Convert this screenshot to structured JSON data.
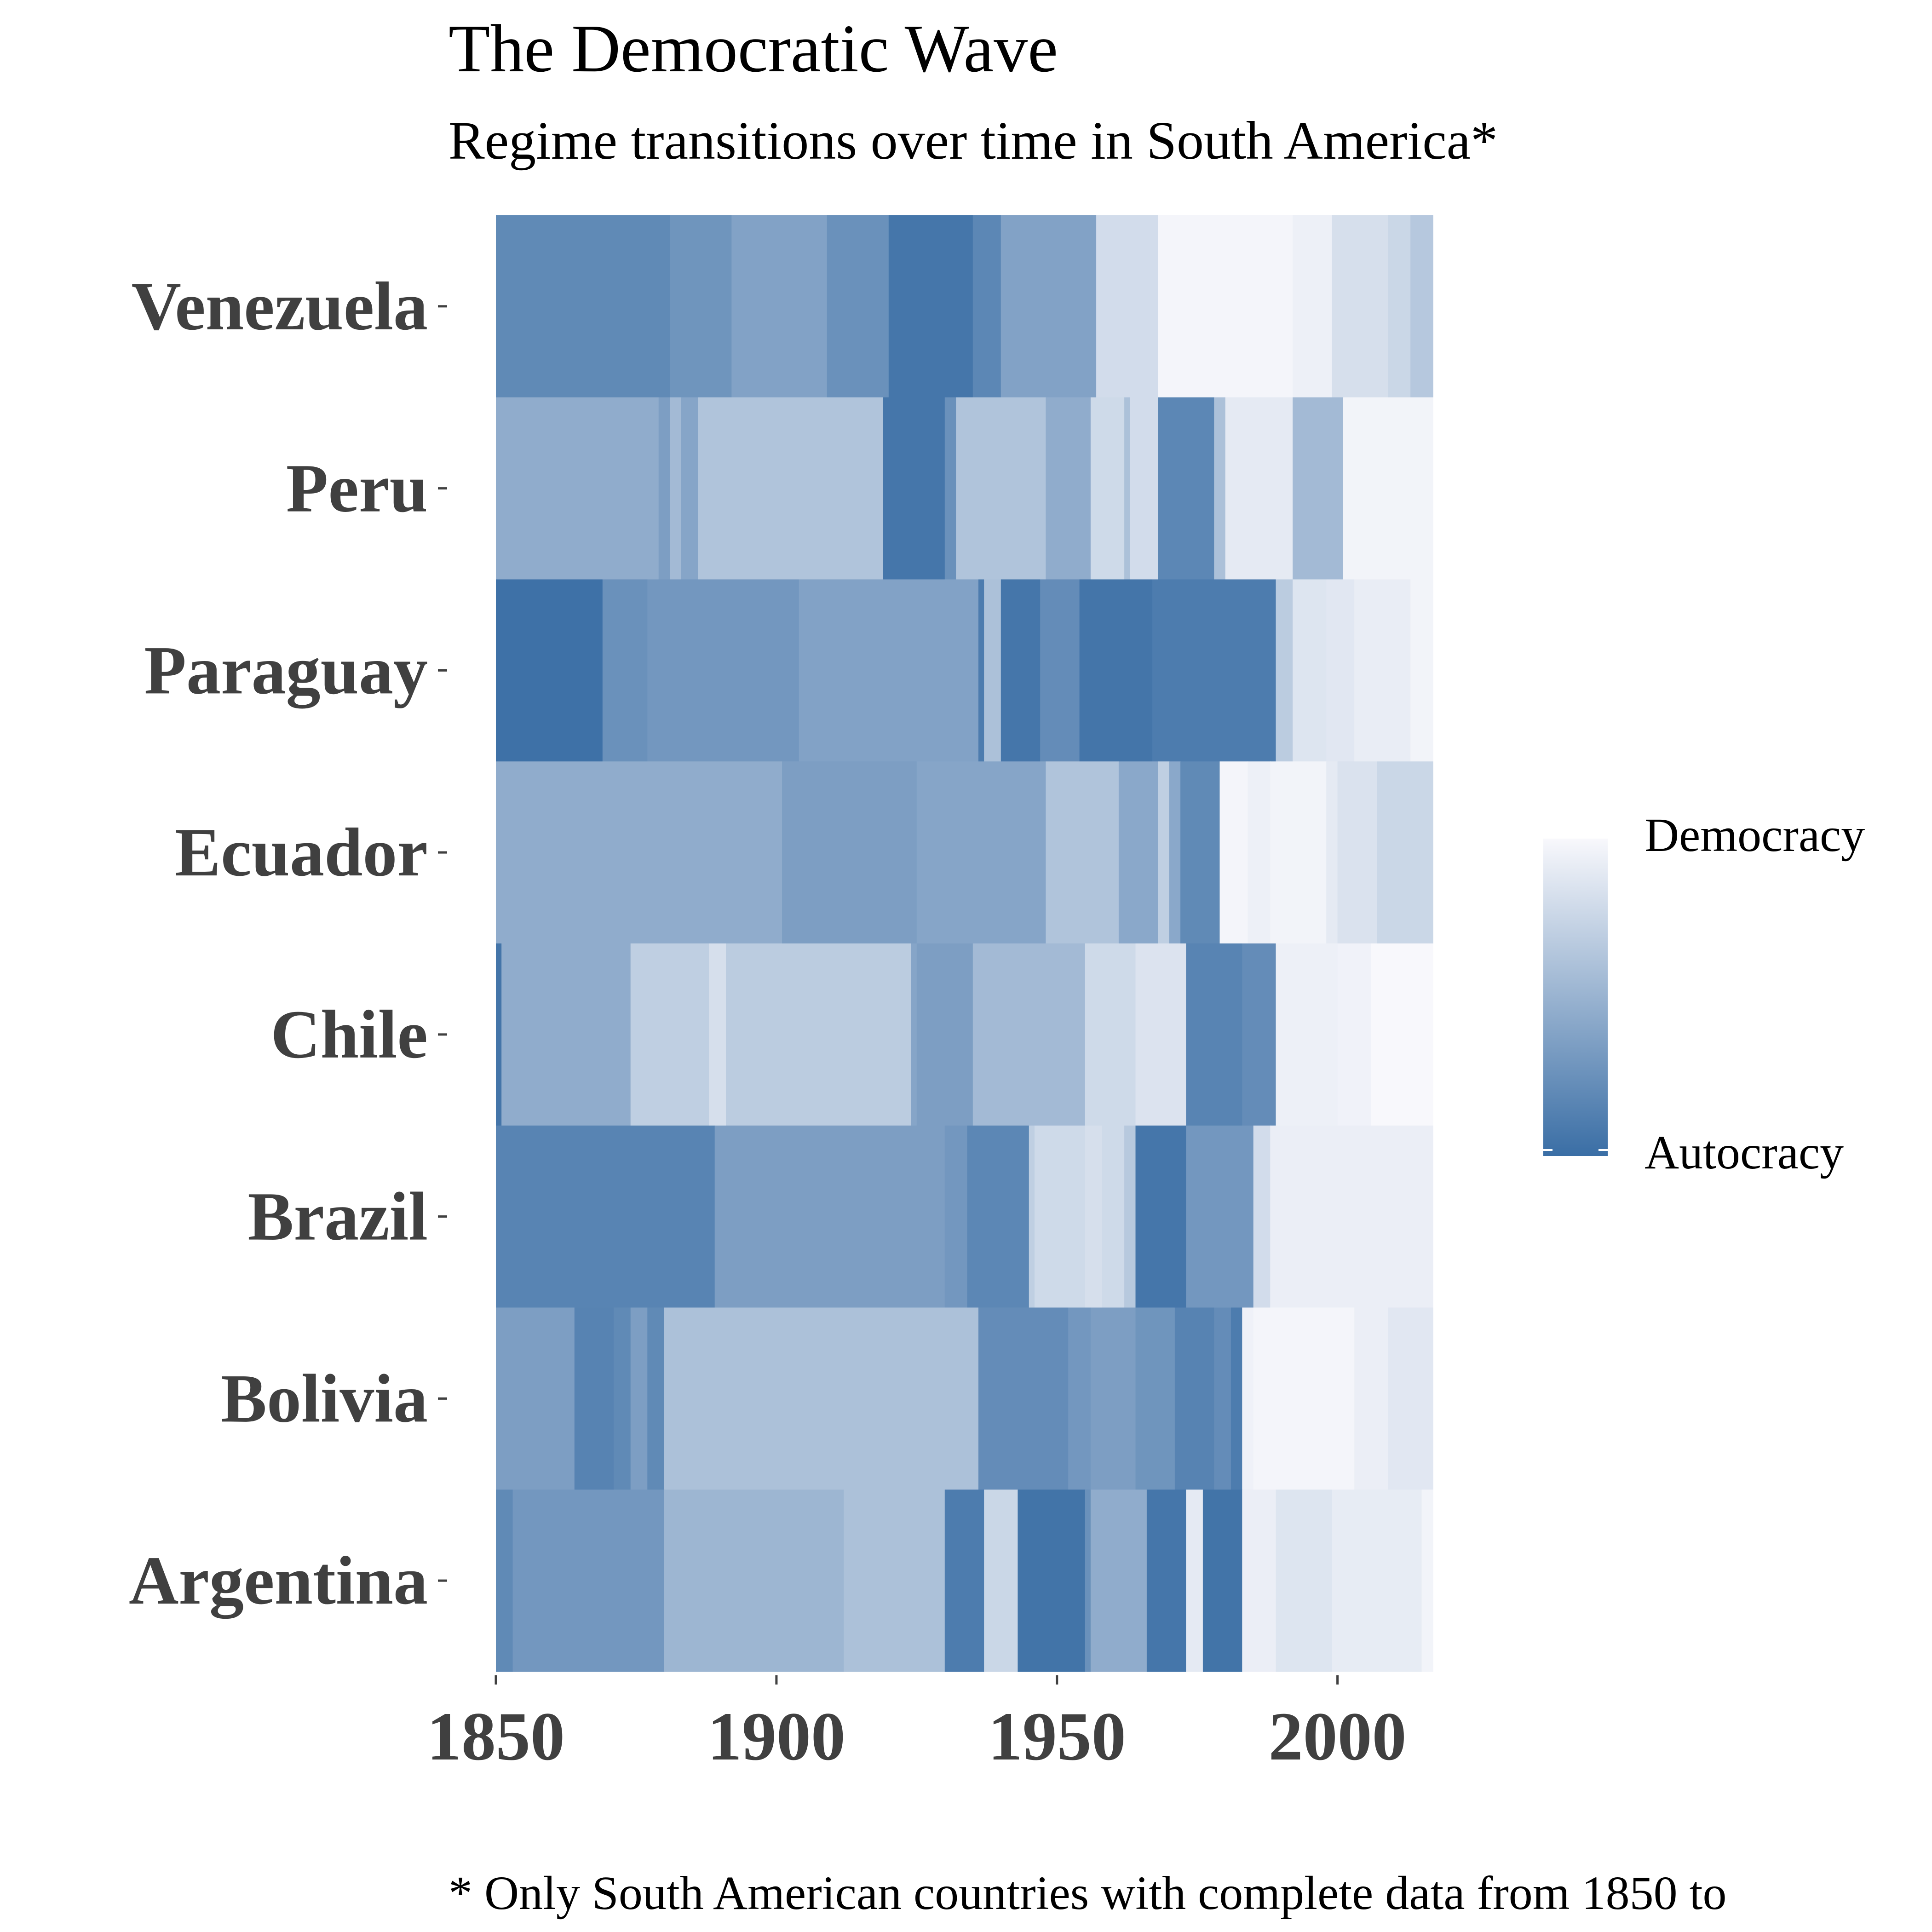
{
  "chart_data": {
    "type": "heatmap",
    "title": "The Democratic Wave",
    "subtitle": "Regime transitions over time in South America*",
    "caption": "* Only South American countries with complete data from 1850 to",
    "x_ticks": [
      1850,
      1900,
      1950,
      2000
    ],
    "xlim": [
      1850,
      2017
    ],
    "legend": {
      "high_label": "Democracy",
      "low_label": "Autocracy",
      "low_color": "#3a6ea5",
      "high_color": "#f8f8fc",
      "placement": "right"
    },
    "countries": [
      {
        "name": "Venezuela",
        "segments": [
          [
            1850,
            1881,
            0.2
          ],
          [
            1881,
            1892,
            0.28
          ],
          [
            1892,
            1909,
            0.38
          ],
          [
            1909,
            1920,
            0.25
          ],
          [
            1920,
            1935,
            0.06
          ],
          [
            1935,
            1940,
            0.18
          ],
          [
            1940,
            1957,
            0.38
          ],
          [
            1957,
            1968,
            0.8
          ],
          [
            1968,
            1992,
            0.98
          ],
          [
            1992,
            1999,
            0.94
          ],
          [
            1999,
            2003,
            0.82
          ],
          [
            2003,
            2009,
            0.82
          ],
          [
            2009,
            2013,
            0.76
          ],
          [
            2013,
            2017,
            0.65
          ]
        ]
      },
      {
        "name": "Peru",
        "segments": [
          [
            1850,
            1879,
            0.45
          ],
          [
            1879,
            1881,
            0.35
          ],
          [
            1881,
            1883,
            0.55
          ],
          [
            1883,
            1886,
            0.4
          ],
          [
            1886,
            1919,
            0.62
          ],
          [
            1919,
            1930,
            0.06
          ],
          [
            1930,
            1932,
            0.25
          ],
          [
            1932,
            1948,
            0.62
          ],
          [
            1948,
            1956,
            0.45
          ],
          [
            1956,
            1962,
            0.78
          ],
          [
            1962,
            1963,
            0.6
          ],
          [
            1963,
            1968,
            0.8
          ],
          [
            1968,
            1978,
            0.18
          ],
          [
            1978,
            1980,
            0.6
          ],
          [
            1980,
            1992,
            0.9
          ],
          [
            1992,
            2001,
            0.55
          ],
          [
            2001,
            2017,
            0.97
          ]
        ]
      },
      {
        "name": "Paraguay",
        "segments": [
          [
            1850,
            1869,
            0.02
          ],
          [
            1869,
            1877,
            0.25
          ],
          [
            1877,
            1904,
            0.3
          ],
          [
            1904,
            1936,
            0.38
          ],
          [
            1936,
            1937,
            0.1
          ],
          [
            1937,
            1940,
            0.6
          ],
          [
            1940,
            1947,
            0.06
          ],
          [
            1947,
            1954,
            0.22
          ],
          [
            1954,
            1967,
            0.05
          ],
          [
            1967,
            1989,
            0.1
          ],
          [
            1989,
            1992,
            0.68
          ],
          [
            1992,
            1998,
            0.86
          ],
          [
            1998,
            2003,
            0.88
          ],
          [
            2003,
            2013,
            0.92
          ],
          [
            2013,
            2017,
            0.97
          ]
        ]
      },
      {
        "name": "Ecuador",
        "segments": [
          [
            1850,
            1901,
            0.45
          ],
          [
            1901,
            1925,
            0.35
          ],
          [
            1925,
            1948,
            0.4
          ],
          [
            1948,
            1961,
            0.62
          ],
          [
            1961,
            1968,
            0.42
          ],
          [
            1968,
            1970,
            0.7
          ],
          [
            1970,
            1972,
            0.42
          ],
          [
            1972,
            1979,
            0.2
          ],
          [
            1979,
            1984,
            0.98
          ],
          [
            1984,
            1988,
            0.94
          ],
          [
            1988,
            1998,
            0.97
          ],
          [
            1998,
            2000,
            0.9
          ],
          [
            2000,
            2007,
            0.84
          ],
          [
            2007,
            2017,
            0.76
          ]
        ]
      },
      {
        "name": "Chile",
        "segments": [
          [
            1850,
            1851,
            0.05
          ],
          [
            1851,
            1874,
            0.45
          ],
          [
            1874,
            1888,
            0.7
          ],
          [
            1888,
            1891,
            0.82
          ],
          [
            1891,
            1924,
            0.68
          ],
          [
            1924,
            1925,
            0.4
          ],
          [
            1925,
            1935,
            0.35
          ],
          [
            1935,
            1955,
            0.55
          ],
          [
            1955,
            1964,
            0.78
          ],
          [
            1964,
            1973,
            0.85
          ],
          [
            1973,
            1983,
            0.16
          ],
          [
            1983,
            1989,
            0.22
          ],
          [
            1989,
            2000,
            0.94
          ],
          [
            2000,
            2006,
            0.96
          ],
          [
            2006,
            2017,
            1.0
          ]
        ]
      },
      {
        "name": "Brazil",
        "segments": [
          [
            1850,
            1889,
            0.16
          ],
          [
            1889,
            1930,
            0.35
          ],
          [
            1930,
            1934,
            0.3
          ],
          [
            1934,
            1945,
            0.18
          ],
          [
            1945,
            1946,
            0.7
          ],
          [
            1946,
            1955,
            0.78
          ],
          [
            1955,
            1958,
            0.82
          ],
          [
            1958,
            1962,
            0.78
          ],
          [
            1962,
            1964,
            0.66
          ],
          [
            1964,
            1973,
            0.06
          ],
          [
            1973,
            1985,
            0.3
          ],
          [
            1985,
            1988,
            0.8
          ],
          [
            1988,
            2017,
            0.93
          ]
        ]
      },
      {
        "name": "Bolivia",
        "segments": [
          [
            1850,
            1864,
            0.35
          ],
          [
            1864,
            1871,
            0.15
          ],
          [
            1871,
            1874,
            0.2
          ],
          [
            1874,
            1877,
            0.35
          ],
          [
            1877,
            1880,
            0.2
          ],
          [
            1880,
            1936,
            0.6
          ],
          [
            1936,
            1952,
            0.22
          ],
          [
            1952,
            1956,
            0.3
          ],
          [
            1956,
            1964,
            0.35
          ],
          [
            1964,
            1971,
            0.28
          ],
          [
            1971,
            1978,
            0.15
          ],
          [
            1978,
            1981,
            0.22
          ],
          [
            1981,
            1983,
            0.1
          ],
          [
            1983,
            1985,
            0.95
          ],
          [
            1985,
            2003,
            0.98
          ],
          [
            2003,
            2009,
            0.93
          ],
          [
            2009,
            2017,
            0.88
          ]
        ]
      },
      {
        "name": "Argentina",
        "segments": [
          [
            1850,
            1853,
            0.2
          ],
          [
            1853,
            1880,
            0.3
          ],
          [
            1880,
            1912,
            0.52
          ],
          [
            1912,
            1930,
            0.6
          ],
          [
            1930,
            1937,
            0.1
          ],
          [
            1937,
            1943,
            0.76
          ],
          [
            1943,
            1955,
            0.04
          ],
          [
            1955,
            1956,
            0.25
          ],
          [
            1956,
            1966,
            0.45
          ],
          [
            1966,
            1973,
            0.06
          ],
          [
            1973,
            1976,
            0.9
          ],
          [
            1976,
            1983,
            0.04
          ],
          [
            1983,
            1989,
            0.93
          ],
          [
            1989,
            1999,
            0.86
          ],
          [
            1999,
            2015,
            0.91
          ],
          [
            2015,
            2017,
            0.97
          ]
        ]
      }
    ]
  }
}
